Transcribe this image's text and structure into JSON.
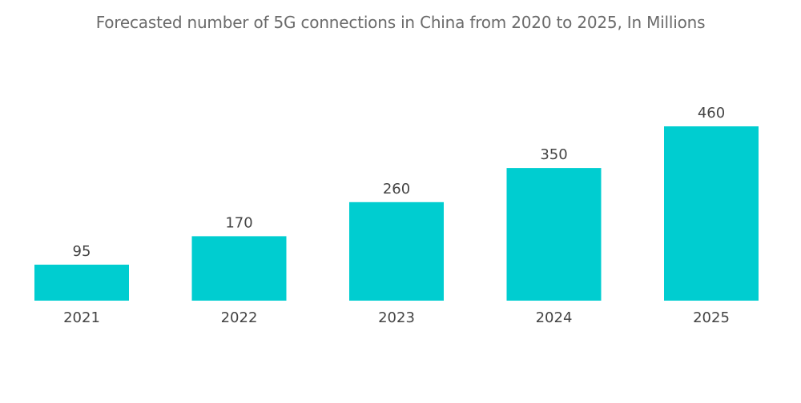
{
  "chart_data": {
    "type": "bar",
    "title": "Forecasted number of 5G connections in China from 2020 to 2025, In Millions",
    "categories": [
      "2021",
      "2022",
      "2023",
      "2024",
      "2025"
    ],
    "values": [
      95,
      170,
      260,
      350,
      460
    ],
    "value_labels": [
      "95",
      "170",
      "260",
      "350",
      "460"
    ],
    "xlabel": "",
    "ylabel": "",
    "ylim": [
      0,
      460
    ],
    "grid": false,
    "legend": "none",
    "bar_color": "#00cdd0",
    "text_color": "#444444",
    "title_color": "#6b6b6b"
  }
}
